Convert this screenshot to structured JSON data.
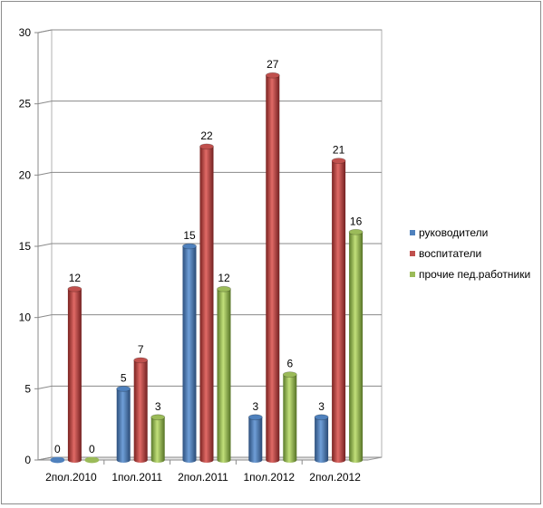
{
  "chart_data": {
    "type": "bar",
    "style": "3d-cylinder",
    "title": "",
    "xlabel": "",
    "ylabel": "",
    "ylim": [
      0,
      30
    ],
    "yticks": [
      "0",
      "5",
      "10",
      "15",
      "20",
      "25",
      "30"
    ],
    "grid": true,
    "legend_position": "right",
    "categories": [
      "2пол.2010",
      "1пол.2011",
      "2пол.2011",
      "1пол.2012",
      "2пол.2012"
    ],
    "series": [
      {
        "name": "руководители",
        "color": "#4f81bd",
        "values": [
          0,
          5,
          15,
          3,
          3
        ]
      },
      {
        "name": "воспитатели",
        "color": "#c0504d",
        "values": [
          12,
          7,
          22,
          27,
          21
        ]
      },
      {
        "name": "прочие пед.работники",
        "color": "#9bbb59",
        "values": [
          0,
          3,
          12,
          6,
          16
        ]
      }
    ],
    "data_labels": [
      [
        "0",
        "5",
        "15",
        "3",
        "3"
      ],
      [
        "12",
        "7",
        "22",
        "27",
        "21"
      ],
      [
        "0",
        "3",
        "12",
        "6",
        "16"
      ]
    ]
  }
}
